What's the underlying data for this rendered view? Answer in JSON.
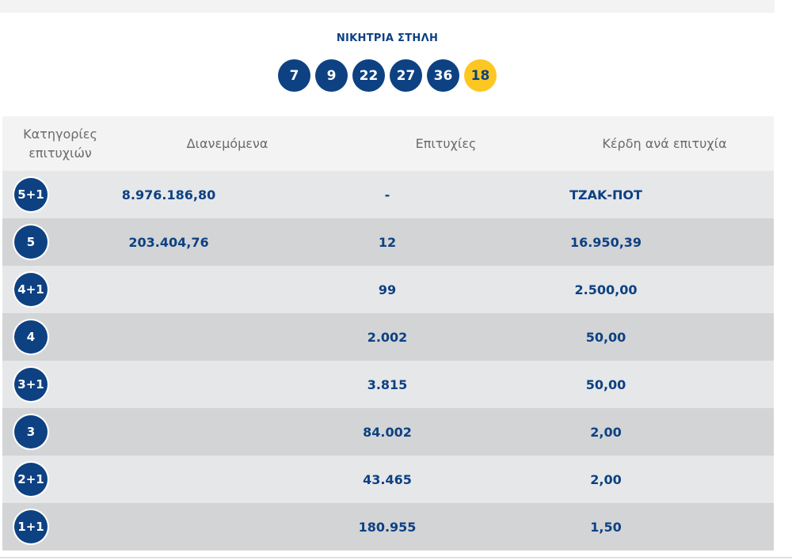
{
  "winning": {
    "title": "ΝΙΚΗΤΡΙΑ ΣΤΗΛΗ",
    "numbers": [
      "7",
      "9",
      "22",
      "27",
      "36"
    ],
    "joker": "18"
  },
  "table": {
    "headers": {
      "category_line1": "Κατηγορίες",
      "category_line2": "επιτυχιών",
      "distributed": "Διανεμόμενα",
      "winners": "Επιτυχίες",
      "prize": "Κέρδη ανά επιτυχία"
    },
    "rows": [
      {
        "category": "5+1",
        "distributed": "8.976.186,80",
        "winners": "-",
        "prize": "ΤΖΑΚ-ΠΟΤ"
      },
      {
        "category": "5",
        "distributed": "203.404,76",
        "winners": "12",
        "prize": "16.950,39"
      },
      {
        "category": "4+1",
        "distributed": "",
        "winners": "99",
        "prize": "2.500,00"
      },
      {
        "category": "4",
        "distributed": "",
        "winners": "2.002",
        "prize": "50,00"
      },
      {
        "category": "3+1",
        "distributed": "",
        "winners": "3.815",
        "prize": "50,00"
      },
      {
        "category": "3",
        "distributed": "",
        "winners": "84.002",
        "prize": "2,00"
      },
      {
        "category": "2+1",
        "distributed": "",
        "winners": "43.465",
        "prize": "2,00"
      },
      {
        "category": "1+1",
        "distributed": "",
        "winners": "180.955",
        "prize": "1,50"
      }
    ]
  },
  "colors": {
    "primary": "#0d4182",
    "joker": "#fdc723",
    "row_light": "#e6e7e9",
    "row_dark": "#d3d4d6",
    "header_bg": "#f3f3f3"
  }
}
